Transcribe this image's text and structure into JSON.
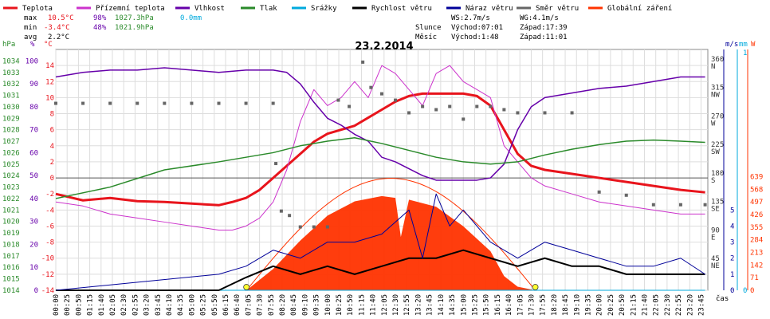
{
  "legend": [
    {
      "label": "Teplota",
      "color": "#e8141c"
    },
    {
      "label": "Přízemní teplota",
      "color": "#cc33cc"
    },
    {
      "label": "Vlhkost",
      "color": "#6600aa"
    },
    {
      "label": "Tlak",
      "color": "#2a8a2a"
    },
    {
      "label": "Srážky",
      "color": "#00aadd"
    },
    {
      "label": "Rychlost větru",
      "color": "#000000"
    },
    {
      "label": "Náraz větru",
      "color": "#000099"
    },
    {
      "label": "Směr větru",
      "color": "#666666"
    },
    {
      "label": "Globální záření",
      "color": "#ff3300"
    }
  ],
  "stats": {
    "max_label": "max",
    "min_label": "min",
    "avg_label": "avg",
    "max_temp": "10.5°C",
    "max_hum": "98%",
    "max_press": "1027.3hPa",
    "max_rain": "0.0mm",
    "min_temp": "-3.4°C",
    "min_hum": "48%",
    "min_press": "1021.9hPa",
    "avg_temp": "2.2°C"
  },
  "astro": {
    "ws": "WS:2.7m/s",
    "wg": "WG:4.1m/s",
    "slunce": "Slunce",
    "mesic": "Měsíc",
    "sun_rise": "Východ:07:01",
    "sun_set": "Západ:17:39",
    "moon_rise": "Východ:1:48",
    "moon_set": "Západ:11:01"
  },
  "date_title": "23.2.2014",
  "axis_units": {
    "hpa": "hPa",
    "pct": "%",
    "degc": "°C",
    "ms": "m/s",
    "mm": "mm",
    "w": "W",
    "cas": "čas"
  },
  "chart_data": {
    "type": "line",
    "title": "23.2.2014",
    "x_ticks": [
      "00:00",
      "00:25",
      "00:50",
      "01:15",
      "01:40",
      "02:05",
      "02:30",
      "02:55",
      "03:20",
      "03:45",
      "04:10",
      "04:35",
      "05:00",
      "05:25",
      "05:50",
      "06:15",
      "06:40",
      "07:05",
      "07:30",
      "07:55",
      "08:20",
      "08:45",
      "09:10",
      "09:35",
      "10:00",
      "10:25",
      "10:50",
      "11:15",
      "11:40",
      "12:05",
      "12:30",
      "12:55",
      "13:20",
      "13:45",
      "14:10",
      "14:35",
      "15:00",
      "15:25",
      "15:50",
      "16:15",
      "16:40",
      "17:05",
      "17:30",
      "17:55",
      "18:20",
      "18:45",
      "19:10",
      "19:35",
      "20:00",
      "20:25",
      "20:50",
      "21:15",
      "21:40",
      "22:05",
      "22:30",
      "22:55",
      "23:20",
      "23:45"
    ],
    "axes": {
      "pressure_hpa": {
        "ticks": [
          1014,
          1015,
          1016,
          1017,
          1018,
          1019,
          1020,
          1021,
          1022,
          1023,
          1024,
          1025,
          1026,
          1027,
          1028,
          1029,
          1030,
          1031,
          1032,
          1033,
          1034
        ],
        "range": [
          1014,
          1035
        ]
      },
      "humidity_pct": {
        "ticks": [
          0,
          10,
          20,
          30,
          40,
          50,
          60,
          70,
          80,
          90,
          100
        ],
        "range": [
          0,
          105
        ]
      },
      "temperature_c": {
        "ticks": [
          -14,
          -12,
          -10,
          -8,
          -6,
          -4,
          -2,
          0,
          2,
          4,
          6,
          8,
          10,
          12,
          14
        ],
        "range": [
          -14,
          16
        ]
      },
      "direction_deg": {
        "ticks": [
          0,
          45,
          90,
          135,
          180,
          225,
          270,
          315,
          360
        ],
        "labels": [
          "",
          "NE",
          "E",
          "SE",
          "S",
          "SW",
          "W",
          "NW",
          "N"
        ],
        "range": [
          0,
          380
        ]
      },
      "wind_ms": {
        "ticks": [
          0,
          1,
          2,
          3,
          4,
          5
        ],
        "range": [
          0,
          15
        ]
      },
      "rain_mm": {
        "ticks": [
          0,
          1
        ],
        "range": [
          0,
          1
        ]
      },
      "radiation_w": {
        "ticks": [
          0,
          71,
          142,
          213,
          284,
          355,
          426,
          497,
          568,
          639
        ],
        "range": [
          0,
          1355
        ]
      }
    },
    "series": [
      {
        "name": "Teplota",
        "unit": "°C",
        "x": [
          0,
          1,
          2,
          3,
          4,
          5,
          6,
          6.5,
          7,
          7.5,
          8,
          8.5,
          9,
          9.5,
          10,
          10.5,
          11,
          11.5,
          12,
          12.5,
          13,
          13.5,
          14,
          14.5,
          15,
          15.5,
          16,
          16.5,
          17,
          17.5,
          18,
          19,
          20,
          21,
          22,
          23,
          23.9
        ],
        "values": [
          -2,
          -2.8,
          -2.5,
          -2.9,
          -3.0,
          -3.2,
          -3.4,
          -3.0,
          -2.5,
          -1.5,
          0,
          1.5,
          3,
          4.5,
          5.5,
          6,
          6.5,
          7.5,
          8.5,
          9.5,
          10.2,
          10.5,
          10.5,
          10.5,
          10.5,
          10.2,
          9,
          6,
          3,
          1.5,
          1,
          0.5,
          0,
          -0.5,
          -1,
          -1.5,
          -1.8
        ]
      },
      {
        "name": "Přízemní teplota",
        "unit": "°C",
        "x": [
          0,
          1,
          2,
          3,
          4,
          5,
          6,
          6.5,
          7,
          7.5,
          8,
          8.5,
          9,
          9.5,
          10,
          10.5,
          11,
          11.5,
          12,
          12.5,
          13,
          13.5,
          14,
          14.5,
          15,
          15.5,
          16,
          16.5,
          17,
          17.5,
          18,
          19,
          20,
          21,
          22,
          23,
          23.9
        ],
        "values": [
          -3,
          -3.5,
          -4.5,
          -5,
          -5.5,
          -6,
          -6.5,
          -6.5,
          -6,
          -5,
          -3,
          1,
          7,
          11,
          9,
          10,
          12,
          10,
          14,
          13,
          11,
          9,
          13,
          14,
          12,
          11,
          10,
          4,
          2,
          0,
          -1,
          -2,
          -3,
          -3.5,
          -4,
          -4.5,
          -4.5
        ]
      },
      {
        "name": "Vlhkost",
        "unit": "%",
        "x": [
          0,
          1,
          2,
          3,
          4,
          5,
          6,
          7,
          8,
          8.5,
          9,
          9.5,
          10,
          10.5,
          11,
          11.5,
          12,
          12.5,
          13,
          13.5,
          14,
          14.5,
          15,
          15.5,
          16,
          16.5,
          17,
          17.5,
          18,
          19,
          20,
          21,
          22,
          23,
          23.9
        ],
        "values": [
          93,
          95,
          96,
          96,
          97,
          96,
          95,
          96,
          96,
          95,
          90,
          82,
          75,
          72,
          68,
          65,
          58,
          56,
          53,
          50,
          48,
          48,
          48,
          48,
          49,
          55,
          70,
          80,
          84,
          86,
          88,
          89,
          91,
          93,
          93
        ]
      },
      {
        "name": "Tlak",
        "unit": "hPa",
        "x": [
          0,
          2,
          4,
          6,
          8,
          9,
          10,
          11,
          12,
          13,
          14,
          15,
          16,
          17,
          18,
          19,
          20,
          21,
          22,
          23,
          23.9
        ],
        "values": [
          1022.0,
          1023.0,
          1024.5,
          1025.2,
          1026.0,
          1026.6,
          1027.0,
          1027.3,
          1026.8,
          1026.2,
          1025.6,
          1025.2,
          1025.0,
          1025.2,
          1025.8,
          1026.3,
          1026.7,
          1027.0,
          1027.1,
          1027.0,
          1026.9
        ]
      },
      {
        "name": "Srážky",
        "unit": "mm",
        "x": [
          0,
          23.9
        ],
        "values": [
          0,
          0
        ]
      },
      {
        "name": "Rychlost větru",
        "unit": "m/s",
        "x": [
          0,
          6,
          7,
          8,
          9,
          10,
          11,
          12,
          13,
          14,
          15,
          16,
          17,
          18,
          19,
          20,
          21,
          22,
          23,
          23.9
        ],
        "values": [
          0,
          0,
          0.8,
          1.5,
          1,
          1.5,
          1,
          1.5,
          2,
          2,
          2.5,
          2,
          1.5,
          2,
          1.5,
          1.5,
          1,
          1,
          1,
          1
        ]
      },
      {
        "name": "Náraz větru",
        "unit": "m/s",
        "x": [
          0,
          6,
          7,
          8,
          9,
          10,
          11,
          12,
          13,
          13.5,
          14,
          14.5,
          15,
          16,
          17,
          18,
          19,
          20,
          21,
          22,
          23,
          23.9
        ],
        "values": [
          0,
          1,
          1.5,
          2.5,
          2,
          3,
          3,
          3.5,
          5,
          2,
          6,
          4,
          5,
          3,
          2,
          3,
          2.5,
          2,
          1.5,
          1.5,
          2,
          1
        ]
      },
      {
        "name": "Globální záření",
        "unit": "W",
        "x": [
          7.02,
          8,
          9,
          10,
          11,
          12,
          12.5,
          12.7,
          13,
          14,
          15,
          16,
          16.5,
          17,
          17.65
        ],
        "values": [
          0,
          120,
          280,
          420,
          500,
          530,
          520,
          300,
          510,
          470,
          360,
          220,
          80,
          20,
          0
        ]
      }
    ],
    "direction_points": [
      {
        "x": 0,
        "y": 295
      },
      {
        "x": 1,
        "y": 295
      },
      {
        "x": 2,
        "y": 295
      },
      {
        "x": 3,
        "y": 295
      },
      {
        "x": 4,
        "y": 295
      },
      {
        "x": 5,
        "y": 295
      },
      {
        "x": 6,
        "y": 295
      },
      {
        "x": 7,
        "y": 295
      },
      {
        "x": 8,
        "y": 295
      },
      {
        "x": 8.1,
        "y": 200
      },
      {
        "x": 8.3,
        "y": 125
      },
      {
        "x": 8.6,
        "y": 118
      },
      {
        "x": 9,
        "y": 100
      },
      {
        "x": 9.5,
        "y": 100
      },
      {
        "x": 10,
        "y": 100
      },
      {
        "x": 10.4,
        "y": 300
      },
      {
        "x": 10.8,
        "y": 290
      },
      {
        "x": 11.3,
        "y": 360
      },
      {
        "x": 11.6,
        "y": 320
      },
      {
        "x": 12,
        "y": 310
      },
      {
        "x": 12.5,
        "y": 300
      },
      {
        "x": 13,
        "y": 280
      },
      {
        "x": 13.5,
        "y": 290
      },
      {
        "x": 14,
        "y": 285
      },
      {
        "x": 14.5,
        "y": 290
      },
      {
        "x": 15,
        "y": 270
      },
      {
        "x": 15.5,
        "y": 290
      },
      {
        "x": 16,
        "y": 290
      },
      {
        "x": 16.5,
        "y": 285
      },
      {
        "x": 17,
        "y": 280
      },
      {
        "x": 18,
        "y": 280
      },
      {
        "x": 19,
        "y": 280
      },
      {
        "x": 20,
        "y": 155
      },
      {
        "x": 21,
        "y": 150
      },
      {
        "x": 22,
        "y": 135
      },
      {
        "x": 23,
        "y": 135
      },
      {
        "x": 23.9,
        "y": 135
      }
    ],
    "sunrise": "07:01",
    "sunset": "17:39",
    "grid": true
  }
}
